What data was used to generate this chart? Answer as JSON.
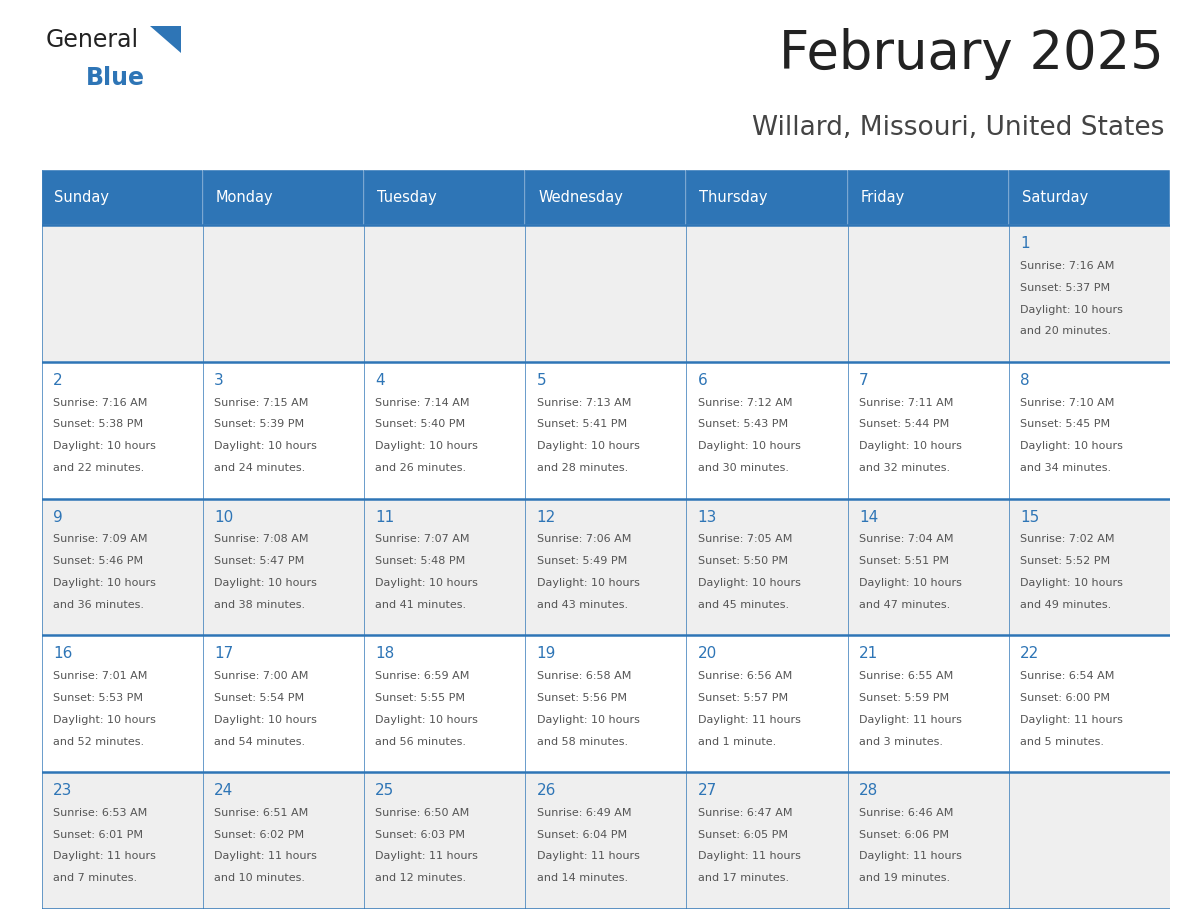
{
  "title": "February 2025",
  "subtitle": "Willard, Missouri, United States",
  "header_bg": "#2E75B6",
  "header_text_color": "#FFFFFF",
  "cell_bg_even": "#EFEFEF",
  "cell_bg_odd": "#FFFFFF",
  "border_color": "#2E75B6",
  "day_headers": [
    "Sunday",
    "Monday",
    "Tuesday",
    "Wednesday",
    "Thursday",
    "Friday",
    "Saturday"
  ],
  "title_color": "#222222",
  "subtitle_color": "#444444",
  "day_num_color": "#2E75B6",
  "cell_text_color": "#555555",
  "logo_general_color": "#222222",
  "logo_blue_color": "#2E75B6",
  "logo_triangle_color": "#2E75B6",
  "days": [
    {
      "date": 1,
      "row": 0,
      "col": 6,
      "sunrise": "7:16 AM",
      "sunset": "5:37 PM",
      "daylight": "10 hours and 20 minutes."
    },
    {
      "date": 2,
      "row": 1,
      "col": 0,
      "sunrise": "7:16 AM",
      "sunset": "5:38 PM",
      "daylight": "10 hours and 22 minutes."
    },
    {
      "date": 3,
      "row": 1,
      "col": 1,
      "sunrise": "7:15 AM",
      "sunset": "5:39 PM",
      "daylight": "10 hours and 24 minutes."
    },
    {
      "date": 4,
      "row": 1,
      "col": 2,
      "sunrise": "7:14 AM",
      "sunset": "5:40 PM",
      "daylight": "10 hours and 26 minutes."
    },
    {
      "date": 5,
      "row": 1,
      "col": 3,
      "sunrise": "7:13 AM",
      "sunset": "5:41 PM",
      "daylight": "10 hours and 28 minutes."
    },
    {
      "date": 6,
      "row": 1,
      "col": 4,
      "sunrise": "7:12 AM",
      "sunset": "5:43 PM",
      "daylight": "10 hours and 30 minutes."
    },
    {
      "date": 7,
      "row": 1,
      "col": 5,
      "sunrise": "7:11 AM",
      "sunset": "5:44 PM",
      "daylight": "10 hours and 32 minutes."
    },
    {
      "date": 8,
      "row": 1,
      "col": 6,
      "sunrise": "7:10 AM",
      "sunset": "5:45 PM",
      "daylight": "10 hours and 34 minutes."
    },
    {
      "date": 9,
      "row": 2,
      "col": 0,
      "sunrise": "7:09 AM",
      "sunset": "5:46 PM",
      "daylight": "10 hours and 36 minutes."
    },
    {
      "date": 10,
      "row": 2,
      "col": 1,
      "sunrise": "7:08 AM",
      "sunset": "5:47 PM",
      "daylight": "10 hours and 38 minutes."
    },
    {
      "date": 11,
      "row": 2,
      "col": 2,
      "sunrise": "7:07 AM",
      "sunset": "5:48 PM",
      "daylight": "10 hours and 41 minutes."
    },
    {
      "date": 12,
      "row": 2,
      "col": 3,
      "sunrise": "7:06 AM",
      "sunset": "5:49 PM",
      "daylight": "10 hours and 43 minutes."
    },
    {
      "date": 13,
      "row": 2,
      "col": 4,
      "sunrise": "7:05 AM",
      "sunset": "5:50 PM",
      "daylight": "10 hours and 45 minutes."
    },
    {
      "date": 14,
      "row": 2,
      "col": 5,
      "sunrise": "7:04 AM",
      "sunset": "5:51 PM",
      "daylight": "10 hours and 47 minutes."
    },
    {
      "date": 15,
      "row": 2,
      "col": 6,
      "sunrise": "7:02 AM",
      "sunset": "5:52 PM",
      "daylight": "10 hours and 49 minutes."
    },
    {
      "date": 16,
      "row": 3,
      "col": 0,
      "sunrise": "7:01 AM",
      "sunset": "5:53 PM",
      "daylight": "10 hours and 52 minutes."
    },
    {
      "date": 17,
      "row": 3,
      "col": 1,
      "sunrise": "7:00 AM",
      "sunset": "5:54 PM",
      "daylight": "10 hours and 54 minutes."
    },
    {
      "date": 18,
      "row": 3,
      "col": 2,
      "sunrise": "6:59 AM",
      "sunset": "5:55 PM",
      "daylight": "10 hours and 56 minutes."
    },
    {
      "date": 19,
      "row": 3,
      "col": 3,
      "sunrise": "6:58 AM",
      "sunset": "5:56 PM",
      "daylight": "10 hours and 58 minutes."
    },
    {
      "date": 20,
      "row": 3,
      "col": 4,
      "sunrise": "6:56 AM",
      "sunset": "5:57 PM",
      "daylight": "11 hours and 1 minute."
    },
    {
      "date": 21,
      "row": 3,
      "col": 5,
      "sunrise": "6:55 AM",
      "sunset": "5:59 PM",
      "daylight": "11 hours and 3 minutes."
    },
    {
      "date": 22,
      "row": 3,
      "col": 6,
      "sunrise": "6:54 AM",
      "sunset": "6:00 PM",
      "daylight": "11 hours and 5 minutes."
    },
    {
      "date": 23,
      "row": 4,
      "col": 0,
      "sunrise": "6:53 AM",
      "sunset": "6:01 PM",
      "daylight": "11 hours and 7 minutes."
    },
    {
      "date": 24,
      "row": 4,
      "col": 1,
      "sunrise": "6:51 AM",
      "sunset": "6:02 PM",
      "daylight": "11 hours and 10 minutes."
    },
    {
      "date": 25,
      "row": 4,
      "col": 2,
      "sunrise": "6:50 AM",
      "sunset": "6:03 PM",
      "daylight": "11 hours and 12 minutes."
    },
    {
      "date": 26,
      "row": 4,
      "col": 3,
      "sunrise": "6:49 AM",
      "sunset": "6:04 PM",
      "daylight": "11 hours and 14 minutes."
    },
    {
      "date": 27,
      "row": 4,
      "col": 4,
      "sunrise": "6:47 AM",
      "sunset": "6:05 PM",
      "daylight": "11 hours and 17 minutes."
    },
    {
      "date": 28,
      "row": 4,
      "col": 5,
      "sunrise": "6:46 AM",
      "sunset": "6:06 PM",
      "daylight": "11 hours and 19 minutes."
    }
  ]
}
